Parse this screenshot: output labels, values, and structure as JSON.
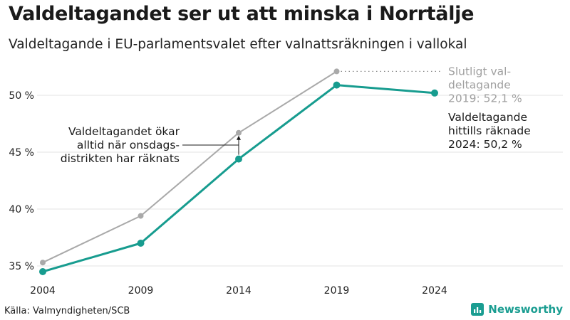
{
  "title": "Valdeltagandet ser ut att minska i Norrtälje",
  "subtitle": "Valdeltagande i EU-parlamentsvalet efter valnattsräkningen i vallokal",
  "source": "Källa: Valmyndigheten/SCB",
  "brand": "Newsworthy",
  "colors": {
    "preliminary": "#179c8f",
    "final": "#a9a9a9",
    "grid": "#e3e3e3",
    "brand": "#1a9d91"
  },
  "chart_data": {
    "type": "line",
    "x": [
      2004,
      2009,
      2014,
      2019,
      2024
    ],
    "ylim": [
      34.5,
      53
    ],
    "yticks": [
      35,
      40,
      45,
      50
    ],
    "ytick_labels": [
      "35 %",
      "40 %",
      "45 %",
      "50 %"
    ],
    "xtick_labels": [
      "2004",
      "2009",
      "2014",
      "2019",
      "2024"
    ],
    "grid": true,
    "series": [
      {
        "name": "Slutligt valdeltagande",
        "values": [
          35.3,
          39.4,
          46.7,
          52.1,
          null
        ]
      },
      {
        "name": "Valdeltagande hittills räknade",
        "values": [
          34.5,
          37.0,
          44.4,
          50.9,
          50.2
        ]
      }
    ],
    "annotations": {
      "final_label": [
        "Slutligt val-",
        "deltagande",
        "2019: 52,1 %"
      ],
      "prelim_label": [
        "Valdeltagande",
        "hittills räknade",
        "2024: 50,2 %"
      ],
      "increase_note": [
        "Valdeltagandet ökar",
        "alltid när onsdags-",
        "distrikten har räknats"
      ]
    }
  }
}
